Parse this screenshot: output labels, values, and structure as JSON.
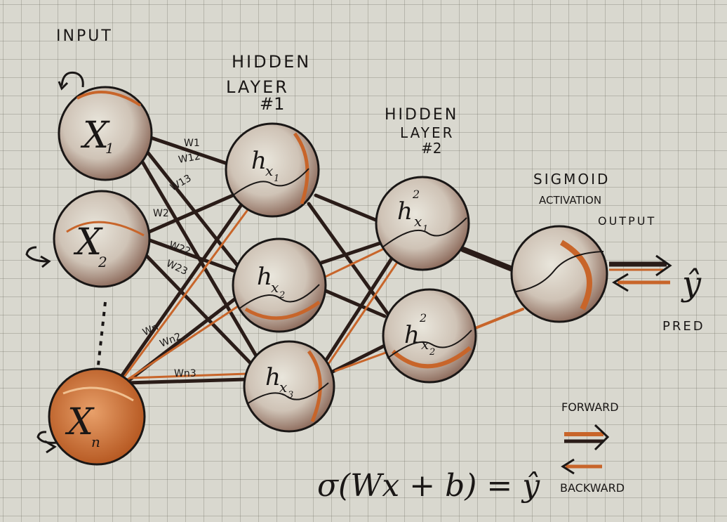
{
  "labels": {
    "input": "INPUT",
    "hidden1_line1": "HIDDEN",
    "hidden1_line2": "LAYER",
    "hidden1_line3": "#1",
    "hidden2_line1": "HIDDEN",
    "hidden2_line2": "LAYER",
    "hidden2_line3": "#2",
    "sigmoid_line1": "SIGMOID",
    "sigmoid_line2": "ACTIVATION",
    "output": "OUTPUT",
    "pred": "PRED",
    "forward": "FORWARD",
    "backward": "BACKWARD",
    "y_hat": "ŷ"
  },
  "formula": "σ(Wx + b) = ŷ",
  "input_nodes": [
    {
      "main": "X",
      "sub": "1"
    },
    {
      "main": "X",
      "sub": "2"
    },
    {
      "main": "X",
      "sub": "n"
    }
  ],
  "hidden1_nodes": [
    {
      "main": "h",
      "sub": "x",
      "subsub": "1"
    },
    {
      "main": "h",
      "sub": "x",
      "subsub": "2"
    },
    {
      "main": "h",
      "sub": "x",
      "subsub": "3"
    }
  ],
  "hidden2_nodes": [
    {
      "main": "h",
      "sup": "2",
      "sub": "x",
      "subsub": "1"
    },
    {
      "main": "h",
      "sup": "2",
      "sub": "x",
      "subsub": "2"
    }
  ],
  "weights": [
    "W1",
    "W12",
    "W13",
    "W2",
    "W22",
    "W23",
    "Wn",
    "Wn2",
    "Wn3"
  ],
  "colors": {
    "ink": "#1a1716",
    "forward": "#2a1c18",
    "backward": "#c8652a",
    "node_shade": "#8a6a5a",
    "paper": "#d9d8cf"
  }
}
